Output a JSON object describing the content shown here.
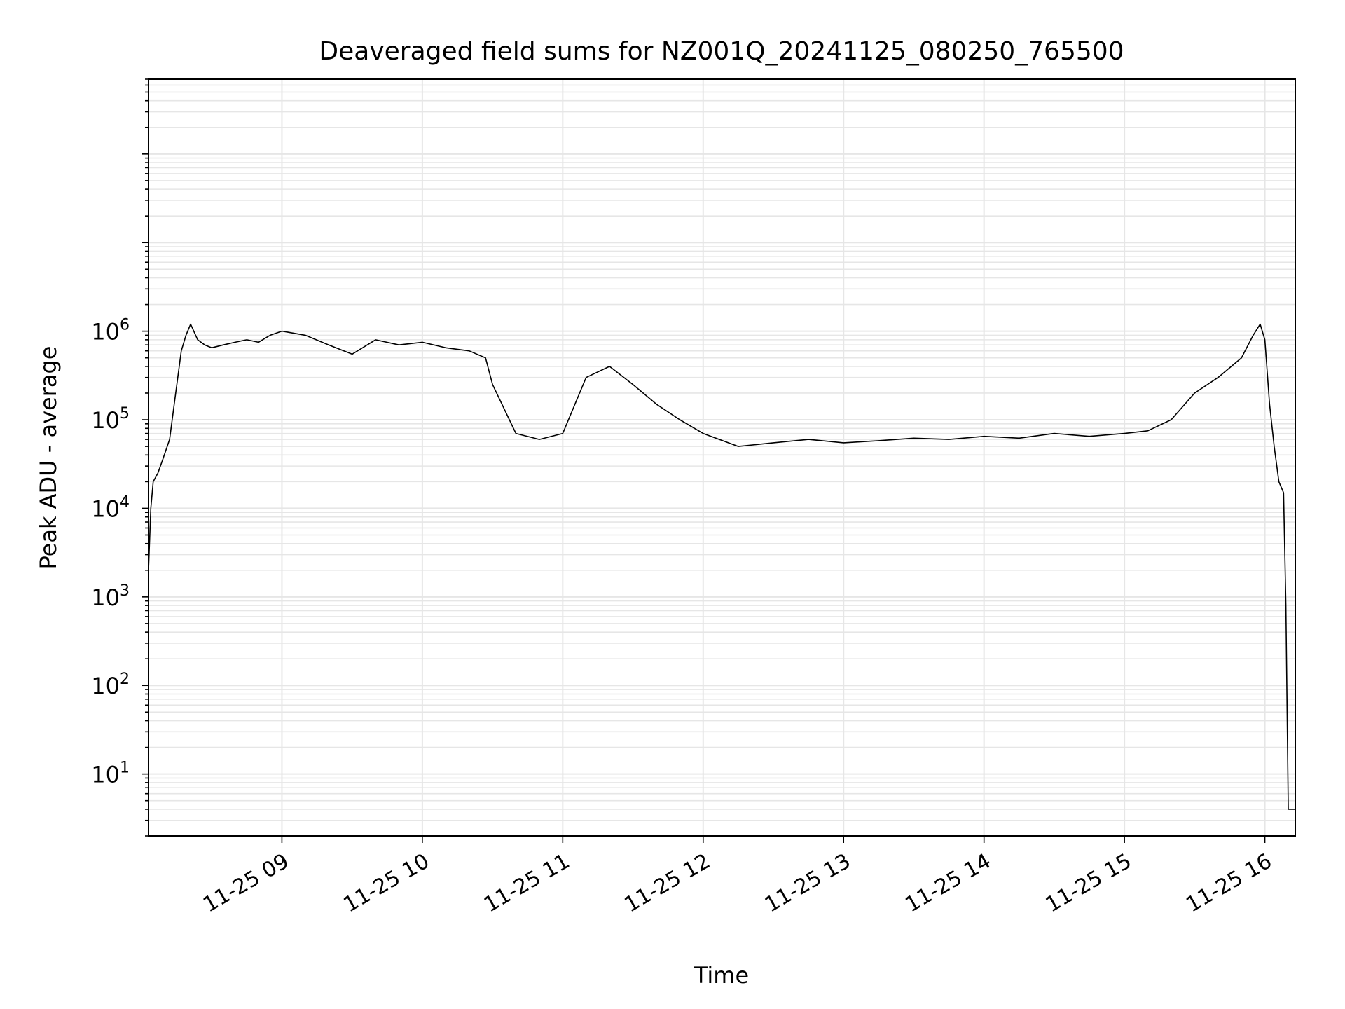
{
  "chart_data": {
    "type": "line",
    "title": "Deaveraged field sums for NZ001Q_20241125_080250_765500",
    "xlabel": "Time",
    "ylabel": "Peak ADU - average",
    "yscale": "log",
    "ylim": [
      2,
      700000000
    ],
    "xlim": [
      "2024-11-25T08:03:00",
      "2024-11-25T16:13:00"
    ],
    "grid": true,
    "line_color": "#000000",
    "grid_color": "#e6e6e6",
    "x_ticks": [
      {
        "value": "2024-11-25T09:00:00",
        "label": "11-25 09"
      },
      {
        "value": "2024-11-25T10:00:00",
        "label": "11-25 10"
      },
      {
        "value": "2024-11-25T11:00:00",
        "label": "11-25 11"
      },
      {
        "value": "2024-11-25T12:00:00",
        "label": "11-25 12"
      },
      {
        "value": "2024-11-25T13:00:00",
        "label": "11-25 13"
      },
      {
        "value": "2024-11-25T14:00:00",
        "label": "11-25 14"
      },
      {
        "value": "2024-11-25T15:00:00",
        "label": "11-25 15"
      },
      {
        "value": "2024-11-25T16:00:00",
        "label": "11-25 16"
      }
    ],
    "y_ticks": [
      {
        "value": 10,
        "base": "10",
        "exp": "1"
      },
      {
        "value": 100,
        "base": "10",
        "exp": "2"
      },
      {
        "value": 1000,
        "base": "10",
        "exp": "3"
      },
      {
        "value": 10000,
        "base": "10",
        "exp": "4"
      },
      {
        "value": 100000,
        "base": "10",
        "exp": "5"
      },
      {
        "value": 1000000,
        "base": "10",
        "exp": "6"
      }
    ],
    "series": [
      {
        "x": [
          "2024-11-25T08:03:00",
          "2024-11-25T08:04:00",
          "2024-11-25T08:05:00",
          "2024-11-25T08:07:00",
          "2024-11-25T08:09:00",
          "2024-11-25T08:12:00",
          "2024-11-25T08:14:00",
          "2024-11-25T08:17:00",
          "2024-11-25T08:19:00",
          "2024-11-25T08:21:00",
          "2024-11-25T08:24:00",
          "2024-11-25T08:27:00",
          "2024-11-25T08:30:00",
          "2024-11-25T08:35:00",
          "2024-11-25T08:40:00",
          "2024-11-25T08:45:00",
          "2024-11-25T08:50:00",
          "2024-11-25T08:55:00",
          "2024-11-25T09:00:00",
          "2024-11-25T09:10:00",
          "2024-11-25T09:20:00",
          "2024-11-25T09:30:00",
          "2024-11-25T09:40:00",
          "2024-11-25T09:50:00",
          "2024-11-25T10:00:00",
          "2024-11-25T10:10:00",
          "2024-11-25T10:20:00",
          "2024-11-25T10:27:00",
          "2024-11-25T10:30:00",
          "2024-11-25T10:40:00",
          "2024-11-25T10:50:00",
          "2024-11-25T11:00:00",
          "2024-11-25T11:10:00",
          "2024-11-25T11:20:00",
          "2024-11-25T11:30:00",
          "2024-11-25T11:40:00",
          "2024-11-25T11:50:00",
          "2024-11-25T12:00:00",
          "2024-11-25T12:15:00",
          "2024-11-25T12:30:00",
          "2024-11-25T12:45:00",
          "2024-11-25T13:00:00",
          "2024-11-25T13:15:00",
          "2024-11-25T13:30:00",
          "2024-11-25T13:45:00",
          "2024-11-25T14:00:00",
          "2024-11-25T14:15:00",
          "2024-11-25T14:30:00",
          "2024-11-25T14:45:00",
          "2024-11-25T15:00:00",
          "2024-11-25T15:10:00",
          "2024-11-25T15:20:00",
          "2024-11-25T15:30:00",
          "2024-11-25T15:40:00",
          "2024-11-25T15:50:00",
          "2024-11-25T15:55:00",
          "2024-11-25T15:58:00",
          "2024-11-25T16:00:00",
          "2024-11-25T16:02:00",
          "2024-11-25T16:04:00",
          "2024-11-25T16:06:00",
          "2024-11-25T16:08:00",
          "2024-11-25T16:09:00",
          "2024-11-25T16:10:00",
          "2024-11-25T16:12:00",
          "2024-11-25T16:13:00"
        ],
        "y": [
          2000,
          10000,
          20000,
          25000,
          35000,
          60000,
          150000,
          600000,
          900000,
          1200000,
          800000,
          700000,
          650000,
          700000,
          750000,
          800000,
          750000,
          900000,
          1000000,
          900000,
          700000,
          550000,
          800000,
          700000,
          750000,
          650000,
          600000,
          500000,
          250000,
          70000,
          60000,
          70000,
          300000,
          400000,
          250000,
          150000,
          100000,
          70000,
          50000,
          55000,
          60000,
          55000,
          58000,
          62000,
          60000,
          65000,
          62000,
          70000,
          65000,
          70000,
          75000,
          100000,
          200000,
          300000,
          500000,
          900000,
          1200000,
          800000,
          150000,
          50000,
          20000,
          15000,
          800,
          4,
          4,
          4
        ]
      }
    ]
  }
}
